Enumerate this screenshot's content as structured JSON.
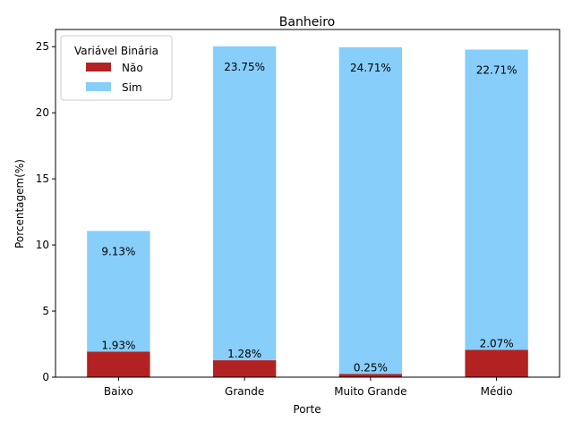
{
  "chart_data": {
    "type": "bar",
    "stacked": true,
    "title": "Banheiro",
    "xlabel": "Porte",
    "ylabel": "Porcentagem(%)",
    "categories": [
      "Baixo",
      "Grande",
      "Muito Grande",
      "Médio"
    ],
    "ylim": [
      0,
      26.3
    ],
    "yticks": [
      0,
      5,
      10,
      15,
      20,
      25
    ],
    "grid": false,
    "legend": {
      "title": "Variável Binária",
      "placement": "top-left"
    },
    "series": [
      {
        "name": "Não",
        "color": "#b22222",
        "values": [
          1.93,
          1.28,
          0.25,
          2.07
        ],
        "labels": [
          "1.93%",
          "1.28%",
          "0.25%",
          "2.07%"
        ]
      },
      {
        "name": "Sim",
        "color": "#87cefa",
        "values": [
          9.13,
          23.75,
          24.71,
          22.71
        ],
        "labels": [
          "9.13%",
          "23.75%",
          "24.71%",
          "22.71%"
        ]
      }
    ]
  }
}
